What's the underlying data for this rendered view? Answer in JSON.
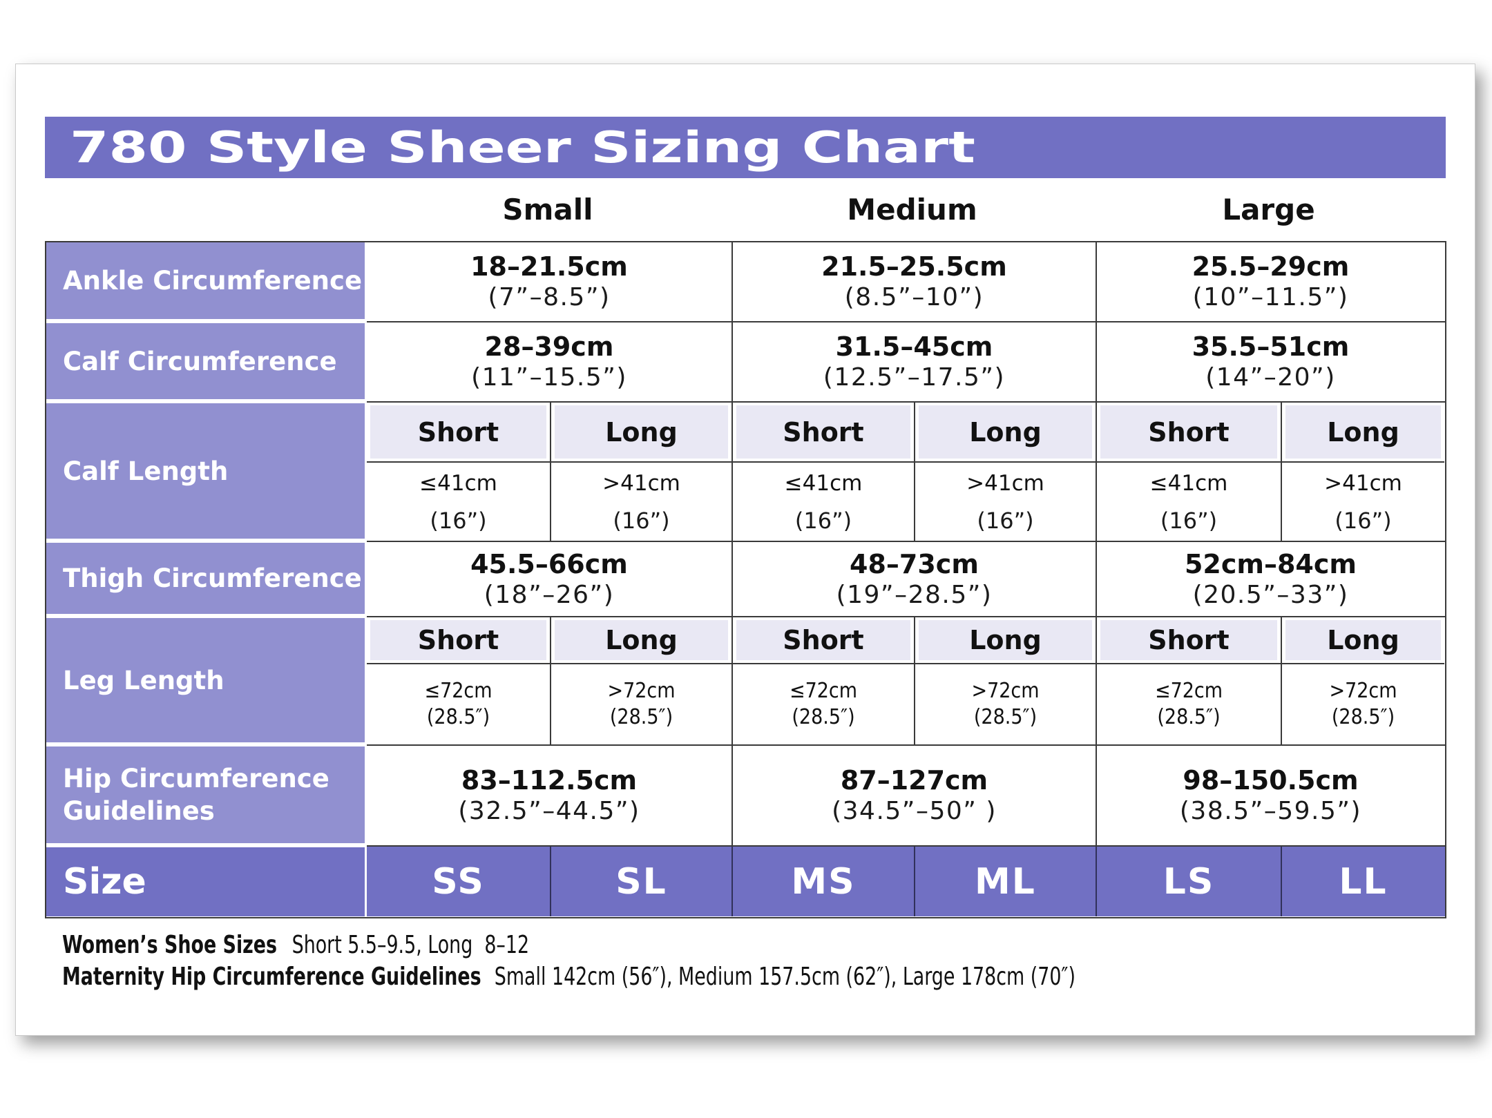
{
  "chart_data": {
    "type": "table",
    "title": "780 Style Sheer Sizing Chart",
    "group_headers": [
      "Small",
      "Medium",
      "Large"
    ],
    "rows": [
      {
        "label": "Ankle Circumference",
        "kind": "merged",
        "values": [
          {
            "cm": "18–21.5cm",
            "inch": "(7”–8.5”)"
          },
          {
            "cm": "21.5–25.5cm",
            "inch": "(8.5”–10”)"
          },
          {
            "cm": "25.5–29cm",
            "inch": "(10”–11.5”)"
          }
        ]
      },
      {
        "label": "Calf Circumference",
        "kind": "merged",
        "values": [
          {
            "cm": "28–39cm",
            "inch": "(11”–15.5”)"
          },
          {
            "cm": "31.5–45cm",
            "inch": "(12.5”–17.5”)"
          },
          {
            "cm": "35.5–51cm",
            "inch": "(14”–20”)"
          }
        ]
      },
      {
        "label": "Calf Length",
        "kind": "split",
        "subheaders": [
          "Short",
          "Long",
          "Short",
          "Long",
          "Short",
          "Long"
        ],
        "values": [
          {
            "cm": "≤41cm",
            "inch": "(16”)"
          },
          {
            "cm": ">41cm",
            "inch": "(16”)"
          },
          {
            "cm": "≤41cm",
            "inch": "(16”)"
          },
          {
            "cm": ">41cm",
            "inch": "(16”)"
          },
          {
            "cm": "≤41cm",
            "inch": "(16”)"
          },
          {
            "cm": ">41cm",
            "inch": "(16”)"
          }
        ]
      },
      {
        "label": "Thigh Circumference",
        "kind": "merged",
        "values": [
          {
            "cm": "45.5–66cm",
            "inch": "(18”–26”)"
          },
          {
            "cm": "48–73cm",
            "inch": "(19”–28.5”)"
          },
          {
            "cm": "52cm–84cm",
            "inch": "(20.5”–33”)"
          }
        ]
      },
      {
        "label": "Leg Length",
        "kind": "split",
        "subheaders": [
          "Short",
          "Long",
          "Short",
          "Long",
          "Short",
          "Long"
        ],
        "values": [
          {
            "cm": "≤72cm",
            "inch": "(28.5″)"
          },
          {
            "cm": ">72cm",
            "inch": "(28.5″)"
          },
          {
            "cm": "≤72cm",
            "inch": "(28.5″)"
          },
          {
            "cm": ">72cm",
            "inch": "(28.5″)"
          },
          {
            "cm": "≤72cm",
            "inch": "(28.5″)"
          },
          {
            "cm": ">72cm",
            "inch": "(28.5″)"
          }
        ]
      },
      {
        "label": "Hip Circumference Guidelines",
        "kind": "merged",
        "values": [
          {
            "cm": "83–112.5cm",
            "inch": "(32.5”–44.5”)"
          },
          {
            "cm": "87–127cm",
            "inch": "(34.5”–50” )"
          },
          {
            "cm": "98–150.5cm",
            "inch": "(38.5”–59.5”)"
          }
        ]
      },
      {
        "label": "Size",
        "kind": "size",
        "values": [
          "SS",
          "SL",
          "MS",
          "ML",
          "LS",
          "LL"
        ]
      }
    ],
    "footnotes": [
      {
        "label": "Women’s Shoe Sizes",
        "text": "Short 5.5–9.5, Long  8–12"
      },
      {
        "label": "Maternity Hip Circumference Guidelines",
        "text": "Small 142cm (56″), Medium 157.5cm (62″), Large 178cm (70″)"
      }
    ],
    "colors": {
      "header_purple": "#7170c3",
      "label_purple": "#9190d0",
      "subheader_lavender": "#e9e8f4",
      "grid_line": "#3a3a3a",
      "text_dark": "#111111"
    },
    "layout": {
      "grid": "on",
      "legend": "none"
    }
  }
}
